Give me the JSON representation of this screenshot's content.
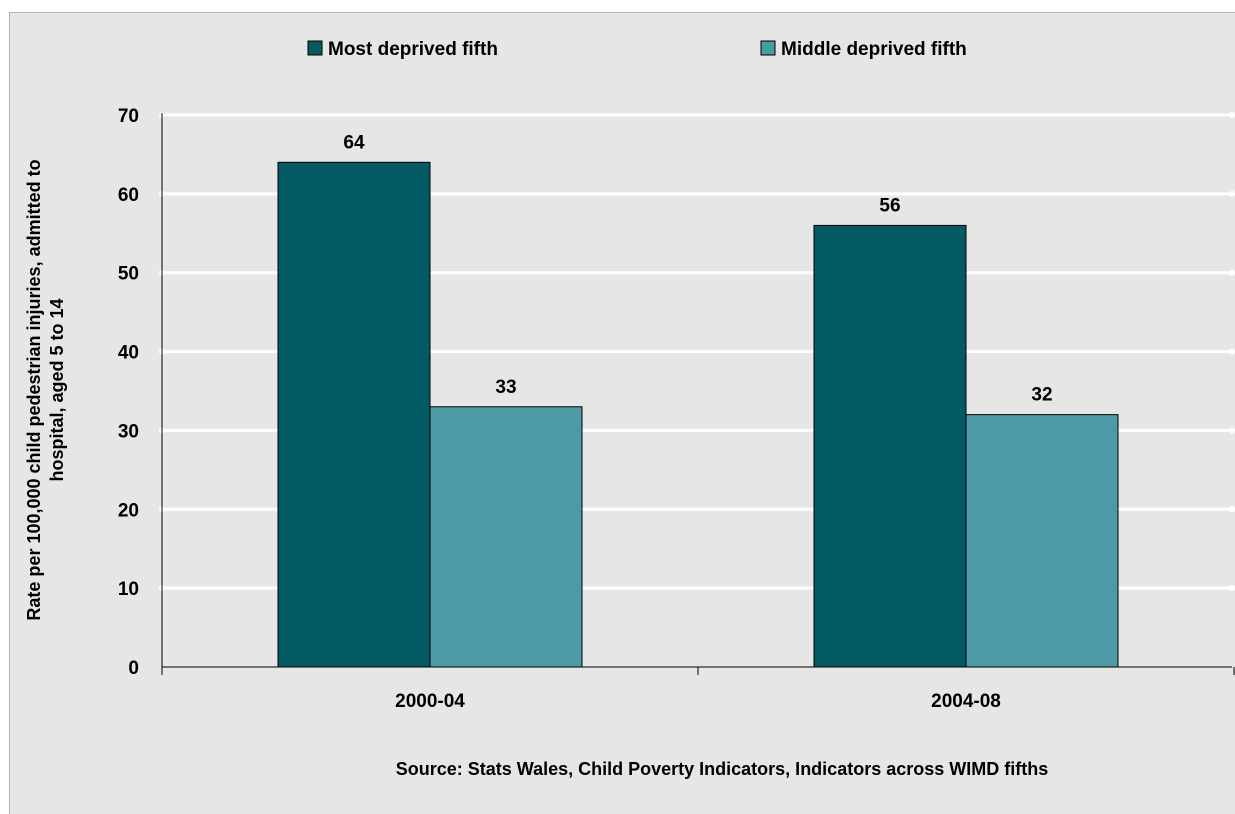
{
  "chart_data": {
    "type": "bar",
    "categories": [
      "2000-04",
      "2004-08"
    ],
    "series": [
      {
        "name": "Most deprived fifth",
        "values": [
          64,
          56
        ],
        "color": "#045a62"
      },
      {
        "name": "Middle deprived fifth",
        "values": [
          33,
          32
        ],
        "color": "#4b9aa6"
      }
    ],
    "ylabel": "Rate per 100,000 child pedestrian injuries, admitted to hospital, aged 5 to 14",
    "ylim": [
      0,
      70
    ],
    "yticks": [
      0,
      10,
      20,
      30,
      40,
      50,
      60,
      70
    ],
    "grid": true,
    "legend_position": "top",
    "source": "Source: Stats Wales, Child Poverty Indicators, Indicators across WIMD fifths"
  }
}
